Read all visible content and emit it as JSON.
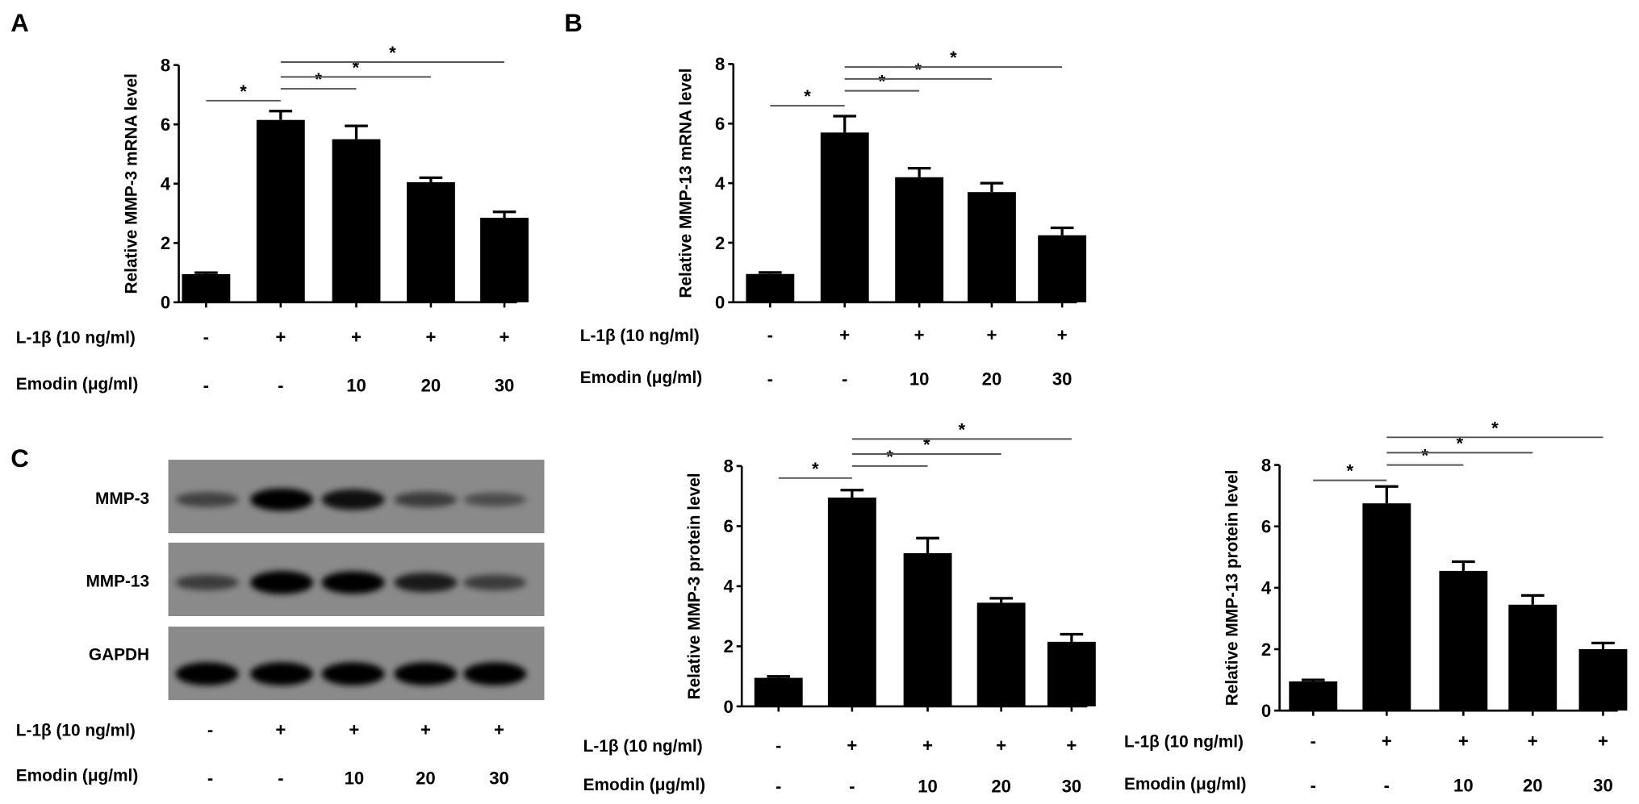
{
  "panel_letters": {
    "a": "A",
    "b": "B",
    "c": "C"
  },
  "condition_rows": {
    "il1b_label": "L-1β (10 ng/ml)",
    "emodin_label": "Emodin (μg/ml)",
    "il1b_values": [
      "-",
      "+",
      "+",
      "+",
      "+"
    ],
    "emodin_values": [
      "-",
      "-",
      "10",
      "20",
      "30"
    ]
  },
  "western_blot": {
    "rows": [
      {
        "label": "MMP-3",
        "band_intensity": [
          0.35,
          0.95,
          0.8,
          0.4,
          0.25
        ]
      },
      {
        "label": "MMP-13",
        "band_intensity": [
          0.4,
          1.0,
          0.95,
          0.7,
          0.4
        ]
      },
      {
        "label": "GAPDH",
        "band_intensity": [
          1.0,
          1.0,
          0.95,
          1.0,
          1.0
        ]
      }
    ],
    "background": "#8a8a8a"
  },
  "chart_data": [
    {
      "id": "A",
      "type": "bar",
      "ylabel": "Relative MMP-3 mRNA level",
      "ylim": [
        0,
        8
      ],
      "yticks": [
        "0",
        "2",
        "4",
        "6",
        "8"
      ],
      "values": [
        0.95,
        6.15,
        5.5,
        4.05,
        2.85
      ],
      "errors": [
        0.05,
        0.3,
        0.45,
        0.15,
        0.2
      ],
      "significance": [
        {
          "from": 0,
          "to": 1,
          "label": "*",
          "y": 6.8
        },
        {
          "from": 1,
          "to": 2,
          "label": "*",
          "y": 7.2
        },
        {
          "from": 1,
          "to": 3,
          "label": "*",
          "y": 7.6
        },
        {
          "from": 1,
          "to": 4,
          "label": "*",
          "y": 8.1
        }
      ],
      "bar_color": "#000000"
    },
    {
      "id": "B",
      "type": "bar",
      "ylabel": "Relative MMP-13 mRNA level",
      "ylim": [
        0,
        8
      ],
      "yticks": [
        "0",
        "2",
        "4",
        "6",
        "8"
      ],
      "values": [
        0.95,
        5.7,
        4.2,
        3.7,
        2.25
      ],
      "errors": [
        0.05,
        0.55,
        0.3,
        0.3,
        0.25
      ],
      "significance": [
        {
          "from": 0,
          "to": 1,
          "label": "*",
          "y": 6.6
        },
        {
          "from": 1,
          "to": 2,
          "label": "*",
          "y": 7.1
        },
        {
          "from": 1,
          "to": 3,
          "label": "*",
          "y": 7.5
        },
        {
          "from": 1,
          "to": 4,
          "label": "*",
          "y": 7.9
        }
      ],
      "bar_color": "#000000"
    },
    {
      "id": "C1",
      "type": "bar",
      "ylabel": "Relative MMP-3 protein level",
      "ylim": [
        0,
        8
      ],
      "yticks": [
        "0",
        "2",
        "4",
        "6",
        "8"
      ],
      "values": [
        0.95,
        6.95,
        5.1,
        3.45,
        2.15
      ],
      "errors": [
        0.05,
        0.25,
        0.5,
        0.15,
        0.25
      ],
      "significance": [
        {
          "from": 0,
          "to": 1,
          "label": "*",
          "y": 7.6
        },
        {
          "from": 1,
          "to": 2,
          "label": "*",
          "y": 8.0
        },
        {
          "from": 1,
          "to": 3,
          "label": "*",
          "y": 8.4
        },
        {
          "from": 1,
          "to": 4,
          "label": "*",
          "y": 8.9
        }
      ],
      "bar_color": "#000000"
    },
    {
      "id": "C2",
      "type": "bar",
      "ylabel": "Relative MMP-13 protein level",
      "ylim": [
        0,
        8
      ],
      "yticks": [
        "0",
        "2",
        "4",
        "6",
        "8"
      ],
      "values": [
        0.95,
        6.75,
        4.55,
        3.45,
        2.0
      ],
      "errors": [
        0.05,
        0.55,
        0.3,
        0.3,
        0.2
      ],
      "significance": [
        {
          "from": 0,
          "to": 1,
          "label": "*",
          "y": 7.5
        },
        {
          "from": 1,
          "to": 2,
          "label": "*",
          "y": 8.0
        },
        {
          "from": 1,
          "to": 3,
          "label": "*",
          "y": 8.4
        },
        {
          "from": 1,
          "to": 4,
          "label": "*",
          "y": 8.9
        }
      ],
      "bar_color": "#000000"
    }
  ]
}
